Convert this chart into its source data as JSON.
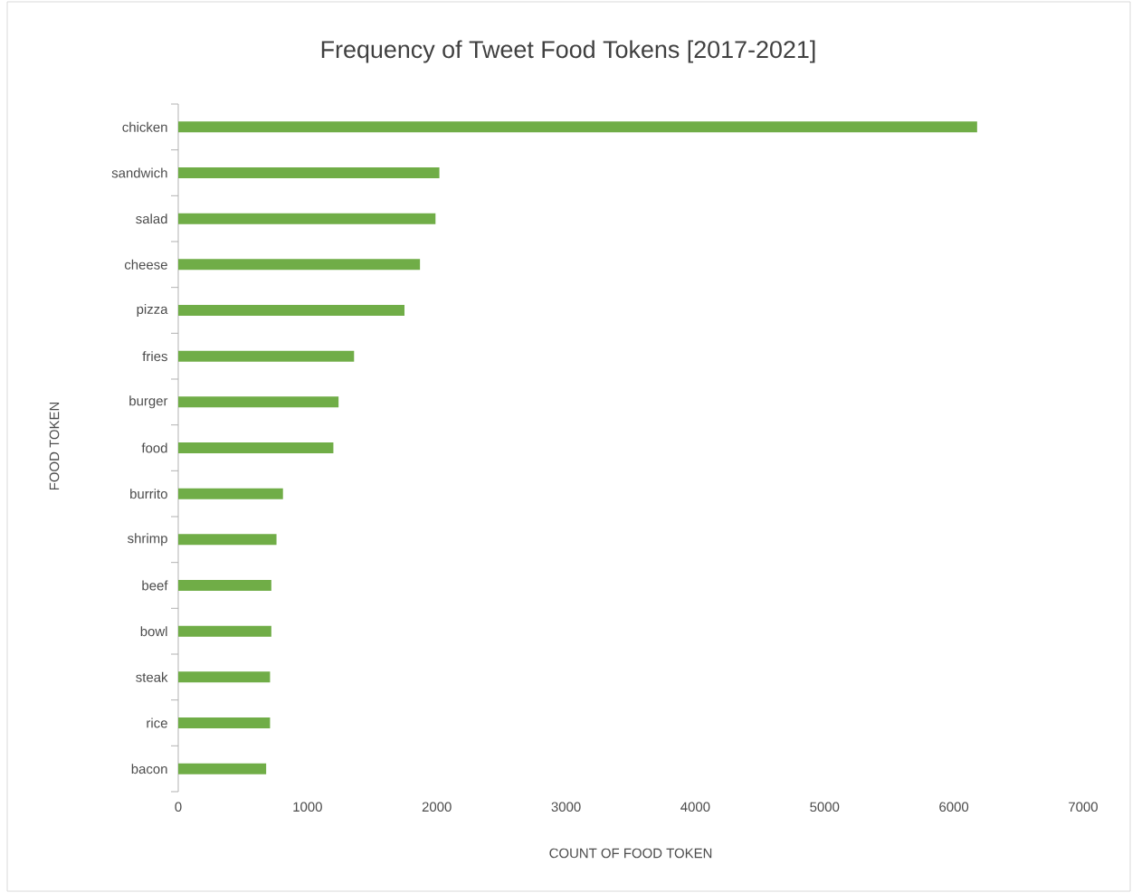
{
  "chart_data": {
    "type": "bar",
    "orientation": "horizontal",
    "title": "Frequency of Tweet Food Tokens [2017-2021]",
    "xlabel": "COUNT OF FOOD TOKEN",
    "ylabel": "FOOD TOKEN",
    "categories": [
      "chicken",
      "sandwich",
      "salad",
      "cheese",
      "pizza",
      "fries",
      "burger",
      "food",
      "burrito",
      "shrimp",
      "beef",
      "bowl",
      "steak",
      "rice",
      "bacon"
    ],
    "values": [
      6180,
      2020,
      1990,
      1870,
      1750,
      1360,
      1240,
      1200,
      810,
      760,
      720,
      720,
      710,
      710,
      680
    ],
    "color": "#70ad47",
    "xlim": [
      0,
      7000
    ],
    "xticks": [
      0,
      1000,
      2000,
      3000,
      4000,
      5000,
      6000,
      7000
    ]
  }
}
